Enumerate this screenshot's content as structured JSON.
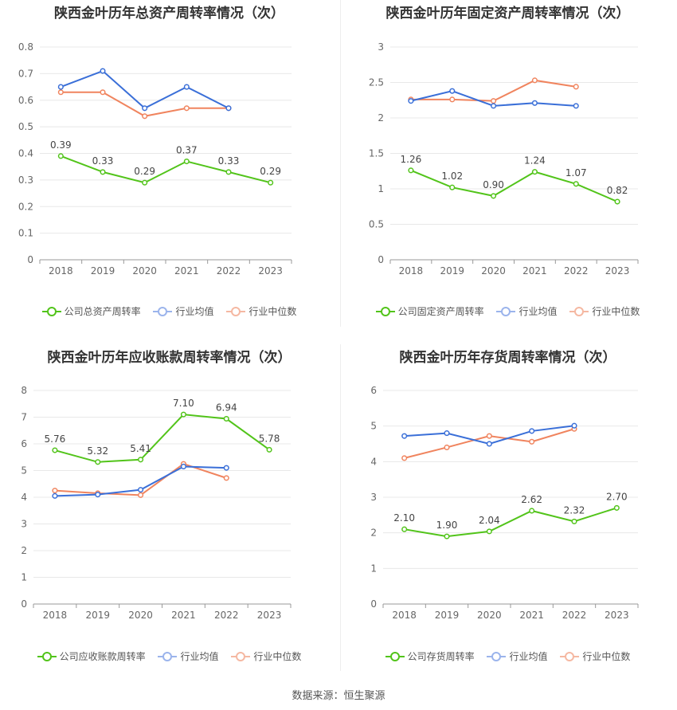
{
  "colors": {
    "company": "#52c41a",
    "avg": "#3a6fd8",
    "median": "#f0845e"
  },
  "source": "数据来源：恒生聚源",
  "chart_data": [
    {
      "type": "line",
      "title": "陕西金叶历年总资产周转率情况（次）",
      "categories": [
        "2018",
        "2019",
        "2020",
        "2021",
        "2022",
        "2023"
      ],
      "ylim": [
        0,
        0.8
      ],
      "yticks": [
        "0",
        "0.1",
        "0.2",
        "0.3",
        "0.4",
        "0.5",
        "0.6",
        "0.7",
        "0.8"
      ],
      "tick_values": [
        0,
        0.1,
        0.2,
        0.3,
        0.4,
        0.5,
        0.6,
        0.7,
        0.8
      ],
      "series": [
        {
          "name": "公司总资产周转率",
          "key": "company",
          "values": [
            0.39,
            0.33,
            0.29,
            0.37,
            0.33,
            0.29
          ],
          "labels": [
            "0.39",
            "0.33",
            "0.29",
            "0.37",
            "0.33",
            "0.29"
          ]
        },
        {
          "name": "行业均值",
          "key": "avg",
          "values": [
            0.65,
            0.71,
            0.57,
            0.65,
            0.57,
            null
          ]
        },
        {
          "name": "行业中位数",
          "key": "median",
          "values": [
            0.63,
            0.63,
            0.54,
            0.57,
            0.57,
            null
          ]
        }
      ]
    },
    {
      "type": "line",
      "title": "陕西金叶历年固定资产周转率情况（次）",
      "categories": [
        "2018",
        "2019",
        "2020",
        "2021",
        "2022",
        "2023"
      ],
      "ylim": [
        0,
        3
      ],
      "yticks": [
        "0",
        "0.5",
        "1",
        "1.5",
        "2",
        "2.5",
        "3"
      ],
      "tick_values": [
        0,
        0.5,
        1,
        1.5,
        2,
        2.5,
        3
      ],
      "series": [
        {
          "name": "公司固定资产周转率",
          "key": "company",
          "values": [
            1.26,
            1.02,
            0.9,
            1.24,
            1.07,
            0.82
          ],
          "labels": [
            "1.26",
            "1.02",
            "0.90",
            "1.24",
            "1.07",
            "0.82"
          ]
        },
        {
          "name": "行业均值",
          "key": "avg",
          "values": [
            2.24,
            2.38,
            2.17,
            2.21,
            2.17,
            null
          ]
        },
        {
          "name": "行业中位数",
          "key": "median",
          "values": [
            2.26,
            2.26,
            2.24,
            2.53,
            2.44,
            null
          ]
        }
      ]
    },
    {
      "type": "line",
      "title": "陕西金叶历年应收账款周转率情况（次）",
      "categories": [
        "2018",
        "2019",
        "2020",
        "2021",
        "2022",
        "2023"
      ],
      "ylim": [
        0,
        8
      ],
      "yticks": [
        "0",
        "1",
        "2",
        "3",
        "4",
        "5",
        "6",
        "7",
        "8"
      ],
      "tick_values": [
        0,
        1,
        2,
        3,
        4,
        5,
        6,
        7,
        8
      ],
      "series": [
        {
          "name": "公司应收账款周转率",
          "key": "company",
          "values": [
            5.76,
            5.32,
            5.41,
            7.1,
            6.94,
            5.78
          ],
          "labels": [
            "5.76",
            "5.32",
            "5.41",
            "7.10",
            "6.94",
            "5.78"
          ]
        },
        {
          "name": "行业均值",
          "key": "avg",
          "values": [
            4.05,
            4.1,
            4.28,
            5.15,
            5.1,
            null
          ]
        },
        {
          "name": "行业中位数",
          "key": "median",
          "values": [
            4.25,
            4.15,
            4.08,
            5.25,
            4.72,
            null
          ]
        }
      ]
    },
    {
      "type": "line",
      "title": "陕西金叶历年存货周转率情况（次）",
      "categories": [
        "2018",
        "2019",
        "2020",
        "2021",
        "2022",
        "2023"
      ],
      "ylim": [
        0,
        6
      ],
      "yticks": [
        "0",
        "1",
        "2",
        "3",
        "4",
        "5",
        "6"
      ],
      "tick_values": [
        0,
        1,
        2,
        3,
        4,
        5,
        6
      ],
      "series": [
        {
          "name": "公司存货周转率",
          "key": "company",
          "values": [
            2.1,
            1.9,
            2.04,
            2.62,
            2.32,
            2.7
          ],
          "labels": [
            "2.10",
            "1.90",
            "2.04",
            "2.62",
            "2.32",
            "2.70"
          ]
        },
        {
          "name": "行业均值",
          "key": "avg",
          "values": [
            4.72,
            4.8,
            4.5,
            4.86,
            5.01,
            null
          ]
        },
        {
          "name": "行业中位数",
          "key": "median",
          "values": [
            4.1,
            4.4,
            4.72,
            4.56,
            4.92,
            null
          ]
        }
      ]
    }
  ]
}
